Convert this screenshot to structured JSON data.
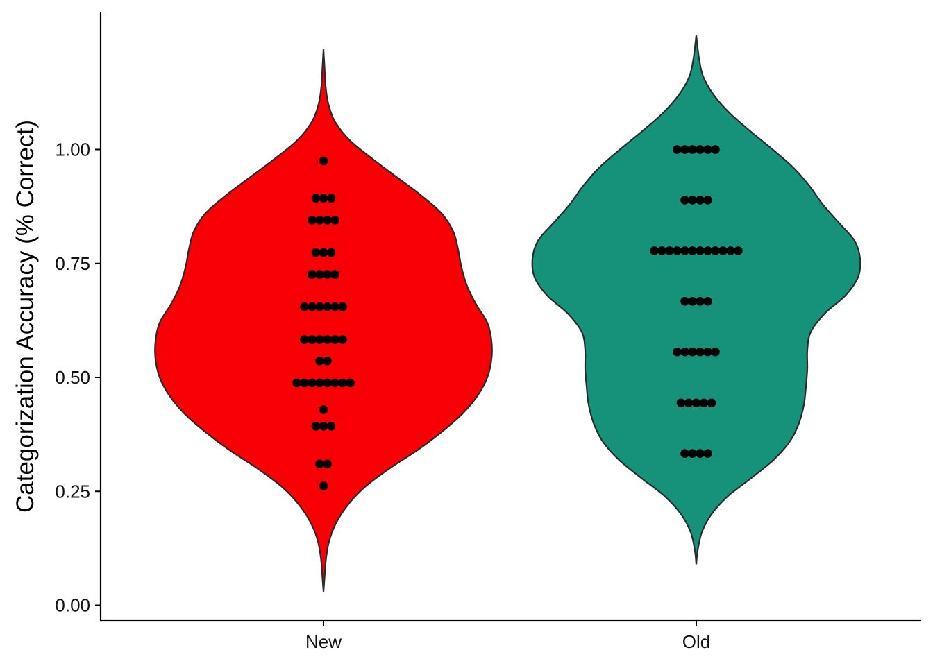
{
  "chart_data": {
    "type": "violin",
    "title": "",
    "xlabel": "",
    "ylabel": "Categorization Accuracy (% Correct)",
    "ylim": [
      -0.03,
      1.3
    ],
    "yticks": [
      0.0,
      0.25,
      0.5,
      0.75,
      1.0
    ],
    "ytick_labels": [
      "0.00",
      "0.25",
      "0.50",
      "0.75",
      "1.00"
    ],
    "grid": false,
    "legend": "none",
    "categories": [
      "New",
      "Old"
    ],
    "groups": [
      {
        "category": "New",
        "color": "#F80005",
        "violin_range": [
          0.03,
          1.22
        ],
        "points": [
          {
            "y": 0.975,
            "count": 1
          },
          {
            "y": 0.893,
            "count": 3
          },
          {
            "y": 0.845,
            "count": 4
          },
          {
            "y": 0.774,
            "count": 3
          },
          {
            "y": 0.726,
            "count": 4
          },
          {
            "y": 0.655,
            "count": 6
          },
          {
            "y": 0.583,
            "count": 6
          },
          {
            "y": 0.536,
            "count": 2
          },
          {
            "y": 0.488,
            "count": 8
          },
          {
            "y": 0.429,
            "count": 1
          },
          {
            "y": 0.393,
            "count": 3
          },
          {
            "y": 0.31,
            "count": 2
          },
          {
            "y": 0.262,
            "count": 1
          }
        ]
      },
      {
        "category": "Old",
        "color": "#159279",
        "violin_range": [
          0.09,
          1.25
        ],
        "points": [
          {
            "y": 1.0,
            "count": 6
          },
          {
            "y": 0.889,
            "count": 4
          },
          {
            "y": 0.778,
            "count": 12
          },
          {
            "y": 0.667,
            "count": 4
          },
          {
            "y": 0.556,
            "count": 6
          },
          {
            "y": 0.444,
            "count": 5
          },
          {
            "y": 0.333,
            "count": 4
          }
        ]
      }
    ]
  }
}
